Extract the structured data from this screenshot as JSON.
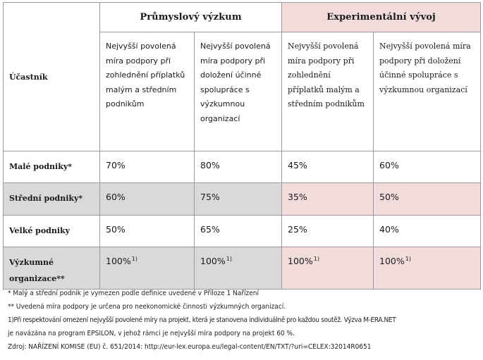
{
  "table": {
    "participant_label": "Účastník",
    "groups": [
      {
        "title": "Průmyslový výzkum"
      },
      {
        "title": "Experimentální vývoj"
      }
    ],
    "subheaders": [
      "Nejvyšší povolená míra podpory při zohlednění příplatků malým a středním podnikům",
      "Nejvyšší povolená míra podpory při doložení účinné spolupráce s výzkumnou organizací",
      "Nejvyšší povolená míra podpory při zohlednění příplatků malým a středním podnikům",
      "Nejvyšší povolená míra podpory při doložení účinné spolupráce s výzkumnou organizací"
    ],
    "rows": [
      {
        "label": "Malé podniky*",
        "values": [
          "70%",
          "80%",
          "45%",
          "60%"
        ],
        "marks": [
          "",
          "",
          "",
          ""
        ]
      },
      {
        "label": "Střední podniky*",
        "values": [
          "60%",
          "75%",
          "35%",
          "50%"
        ],
        "marks": [
          "",
          "",
          "",
          ""
        ]
      },
      {
        "label": "Velké podniky",
        "values": [
          "50%",
          "65%",
          "25%",
          "40%"
        ],
        "marks": [
          "",
          "",
          "",
          ""
        ]
      },
      {
        "label": "Výzkumné organizace**",
        "values": [
          "100%",
          "100%",
          "100%",
          "100%"
        ],
        "marks": [
          "1)",
          "1)",
          "1)",
          "1)"
        ]
      }
    ],
    "colors": {
      "pink": "#f2dcdb",
      "grey": "#d9d9d9",
      "border": "#9a9a9a"
    }
  },
  "notes": [
    "* Malý a střední podnik je vymezen podle definice uvedené v Příloze 1 Nařízení",
    "** Uvedená míra podpory je určena pro neekonomické činnosti výzkumných organizací.",
    "1)Při respektování omezení nejvyšší povolené míry na projekt, která je stanovena individuálně pro každou soutěž. Výzva M-ERA.NET",
    "je navázána na program EPSILON, v jehož rámci je nejvyšší míra podpory na projekt 60 %.",
    "Zdroj: NAŘÍZENÍ KOMISE (EU) č. 651/2014: http://eur-lex.europa.eu/legal-content/EN/TXT/?uri=CELEX:32014R0651"
  ]
}
